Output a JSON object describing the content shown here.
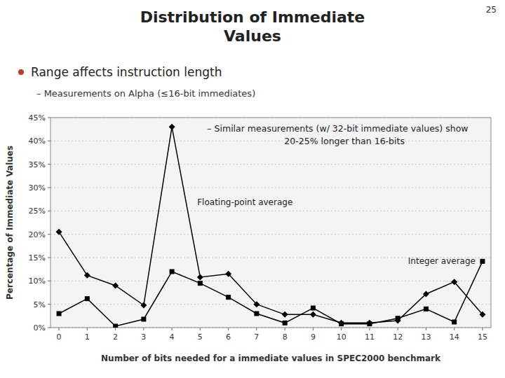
{
  "chart_data": {
    "type": "line",
    "title": "Distribution of Immediate\nValues",
    "page_number": "25",
    "bullet": "Range affects instruction length",
    "subtitle": "– Measurements on Alpha (≤16-bit immediates)",
    "annotations": [
      "– Similar measurements (w/ 32-bit immediate values) show",
      "20-25% longer than 16-bits"
    ],
    "x_label": "Number of bits needed for a immediate values in SPEC2000 benchmark",
    "y_label": "Percentage of Immediate Values",
    "x": [
      0,
      1,
      2,
      3,
      4,
      5,
      6,
      7,
      8,
      9,
      10,
      11,
      12,
      13,
      14,
      15
    ],
    "xlim": [
      -0.3,
      15.3
    ],
    "xticks": [
      0,
      1,
      2,
      3,
      4,
      5,
      6,
      7,
      8,
      9,
      10,
      11,
      12,
      13,
      14,
      15
    ],
    "ylim": [
      0,
      45
    ],
    "yticks": [
      {
        "value": 0,
        "label": "0%"
      },
      {
        "value": 5,
        "label": "5%"
      },
      {
        "value": 10,
        "label": "10%"
      },
      {
        "value": 15,
        "label": "15%"
      },
      {
        "value": 20,
        "label": "20%"
      },
      {
        "value": 25,
        "label": "25%"
      },
      {
        "value": 30,
        "label": "30%"
      },
      {
        "value": 35,
        "label": "35%"
      },
      {
        "value": 40,
        "label": "40%"
      },
      {
        "value": 45,
        "label": "45%"
      }
    ],
    "grid": true,
    "series": [
      {
        "name": "Floating-point average",
        "color": "#000000",
        "marker": "diamond",
        "line_style": "solid",
        "values": [
          20.5,
          11.2,
          9.0,
          4.8,
          43.0,
          10.8,
          11.5,
          5.0,
          2.8,
          2.8,
          1.0,
          1.0,
          1.5,
          7.2,
          9.8,
          2.8
        ]
      },
      {
        "name": "Integer average",
        "color": "#000000",
        "marker": "square",
        "line_style": "solid",
        "values": [
          3.0,
          6.2,
          0.3,
          1.8,
          12.0,
          9.5,
          6.5,
          3.0,
          1.0,
          4.2,
          0.8,
          0.8,
          2.0,
          4.0,
          1.2,
          14.2
        ]
      }
    ]
  }
}
